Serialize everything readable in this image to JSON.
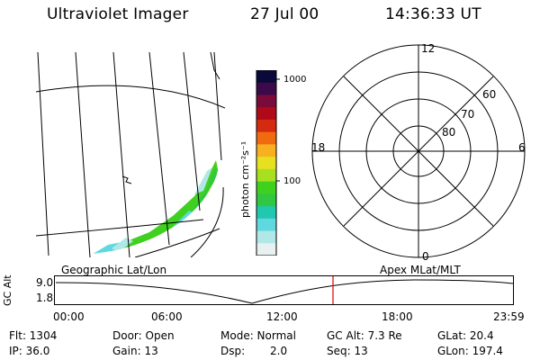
{
  "header": {
    "instrument": "Ultraviolet Imager",
    "date": "27 Jul 00",
    "time": "14:36:33 UT"
  },
  "colorbar": {
    "unit_label": "photon cm⁻²s⁻¹",
    "ticks": [
      "1000",
      "100"
    ],
    "colors": [
      "#0a0a3a",
      "#3a0a4a",
      "#7a0a3a",
      "#b00a1a",
      "#d42a10",
      "#f06a10",
      "#f7b020",
      "#e6e020",
      "#a8e020",
      "#40d020",
      "#30c840",
      "#20c8b0",
      "#60d8e0",
      "#b0e8e8",
      "#e8f0f0"
    ]
  },
  "polar_plot": {
    "mlt_labels": {
      "top": "12",
      "bottom": "0",
      "left": "18",
      "right": "6"
    },
    "lat_labels": [
      "60",
      "70",
      "80"
    ]
  },
  "timeline": {
    "left_caption": "Geographic Lat/Lon",
    "right_caption": "Apex MLat/MLT",
    "ylabel": "GC Alt",
    "yticks": [
      "9.0",
      "1.8"
    ],
    "xticks": [
      "00:00",
      "06:00",
      "12:00",
      "18:00",
      "23:59"
    ],
    "marker_color": "#e00000"
  },
  "status": {
    "flt": "Flt: 1304",
    "ip": "IP: 36.0",
    "door": "Door: Open",
    "gain": "Gain: 13",
    "mode": "Mode: Normal",
    "dsp_label": "Dsp:",
    "dsp_value": "2.0",
    "gcalt": "GC Alt: 7.3 Re",
    "seq": "Seq: 13",
    "glat": "GLat: 20.4",
    "glon": "GLon: 197.4"
  }
}
